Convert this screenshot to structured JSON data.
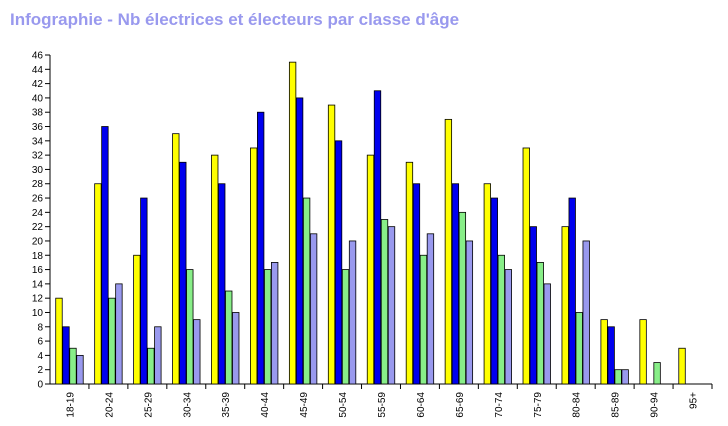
{
  "chart_data": {
    "type": "bar",
    "title": "Infographie - Nb électrices et électeurs par classe d'âge",
    "xlabel": "",
    "ylabel": "",
    "ylim": [
      0,
      46
    ],
    "ytick_step": 2,
    "grid": false,
    "legend": "none",
    "categories": [
      "18-19",
      "20-24",
      "25-29",
      "30-34",
      "35-39",
      "40-44",
      "45-49",
      "50-54",
      "55-59",
      "60-64",
      "65-69",
      "70-74",
      "75-79",
      "80-84",
      "85-89",
      "90-94",
      "95+"
    ],
    "series": [
      {
        "color": "#ffff00",
        "values": [
          12,
          28,
          18,
          35,
          32,
          33,
          45,
          39,
          32,
          31,
          37,
          28,
          33,
          22,
          9,
          9,
          5
        ]
      },
      {
        "color": "#0000ee",
        "values": [
          8,
          36,
          26,
          31,
          28,
          38,
          40,
          34,
          41,
          28,
          28,
          26,
          22,
          26,
          8,
          0,
          0
        ]
      },
      {
        "color": "#88ee88",
        "values": [
          5,
          12,
          5,
          16,
          13,
          16,
          26,
          16,
          23,
          18,
          24,
          18,
          17,
          10,
          2,
          3,
          0
        ]
      },
      {
        "color": "#9999ee",
        "values": [
          4,
          14,
          8,
          9,
          10,
          17,
          21,
          20,
          22,
          21,
          20,
          16,
          14,
          20,
          2,
          0,
          0
        ]
      }
    ]
  }
}
